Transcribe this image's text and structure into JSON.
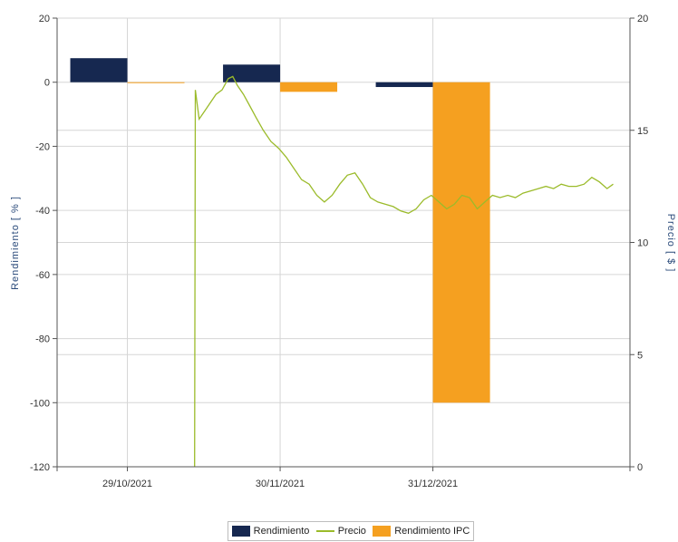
{
  "chart_data": {
    "type": "bar",
    "left_axis": {
      "title": "Rendimiento [ % ]",
      "ylim": [
        -120,
        20
      ],
      "ticks": [
        20,
        0,
        -20,
        -40,
        -60,
        -80,
        -100,
        -120
      ],
      "tick_labels": [
        "20",
        "0",
        "-20",
        "-40",
        "-60",
        "-80",
        "-100",
        "-120"
      ]
    },
    "right_axis": {
      "title": "Precio [ $ ]",
      "ylim": [
        0,
        20
      ],
      "ticks": [
        20,
        15,
        10,
        5,
        0
      ],
      "tick_labels": [
        "20",
        "15",
        "10",
        "5",
        "0"
      ]
    },
    "x_axis": {
      "tick_labels": [
        "29/10/2021",
        "30/11/2021",
        "31/12/2021"
      ]
    },
    "categories": [
      "29/10/2021",
      "30/11/2021",
      "31/12/2021"
    ],
    "series": [
      {
        "name": "Rendimiento",
        "type": "bar",
        "color": "#162850",
        "values": [
          7.5,
          5.5,
          -1.5
        ]
      },
      {
        "name": "Rendimiento IPC",
        "type": "bar",
        "color": "#f5a020",
        "values": [
          -0.2,
          -3,
          -100
        ]
      },
      {
        "name": "Precio",
        "type": "line",
        "color": "#9bbb2a",
        "points": [
          [
            9.0,
            0.0
          ],
          [
            9.05,
            16.8
          ],
          [
            9.3,
            15.5
          ],
          [
            9.7,
            15.9
          ],
          [
            10.0,
            16.2
          ],
          [
            10.4,
            16.6
          ],
          [
            10.8,
            16.8
          ],
          [
            11.2,
            17.3
          ],
          [
            11.5,
            17.4
          ],
          [
            11.8,
            17.0
          ],
          [
            12.2,
            16.6
          ],
          [
            12.6,
            16.1
          ],
          [
            13.0,
            15.6
          ],
          [
            13.5,
            15.0
          ],
          [
            14.0,
            14.5
          ],
          [
            14.5,
            14.2
          ],
          [
            15.0,
            13.8
          ],
          [
            15.5,
            13.3
          ],
          [
            16.0,
            12.8
          ],
          [
            16.5,
            12.6
          ],
          [
            17.0,
            12.1
          ],
          [
            17.5,
            11.8
          ],
          [
            18.0,
            12.1
          ],
          [
            18.5,
            12.6
          ],
          [
            19.0,
            13.0
          ],
          [
            19.5,
            13.1
          ],
          [
            20.0,
            12.6
          ],
          [
            20.5,
            12.0
          ],
          [
            21.0,
            11.8
          ],
          [
            21.5,
            11.7
          ],
          [
            22.0,
            11.6
          ],
          [
            22.5,
            11.4
          ],
          [
            23.0,
            11.3
          ],
          [
            23.5,
            11.5
          ],
          [
            24.0,
            11.9
          ],
          [
            24.5,
            12.1
          ],
          [
            25.0,
            11.8
          ],
          [
            25.5,
            11.5
          ],
          [
            26.0,
            11.7
          ],
          [
            26.5,
            12.1
          ],
          [
            27.0,
            12.0
          ],
          [
            27.5,
            11.5
          ],
          [
            28.0,
            11.8
          ],
          [
            28.5,
            12.1
          ],
          [
            29.0,
            12.0
          ],
          [
            29.5,
            12.1
          ],
          [
            30.0,
            12.0
          ],
          [
            30.5,
            12.2
          ],
          [
            31.0,
            12.3
          ],
          [
            31.5,
            12.4
          ],
          [
            32.0,
            12.5
          ],
          [
            32.5,
            12.4
          ],
          [
            33.0,
            12.6
          ],
          [
            33.5,
            12.5
          ],
          [
            34.0,
            12.5
          ],
          [
            34.5,
            12.6
          ],
          [
            35.0,
            12.9
          ],
          [
            35.5,
            12.7
          ],
          [
            36.0,
            12.4
          ],
          [
            36.4,
            12.6
          ]
        ]
      }
    ],
    "legend": {
      "placement": "bottom",
      "entries": [
        "Rendimiento",
        "Precio",
        "Rendimiento IPC"
      ]
    },
    "grid": true
  }
}
